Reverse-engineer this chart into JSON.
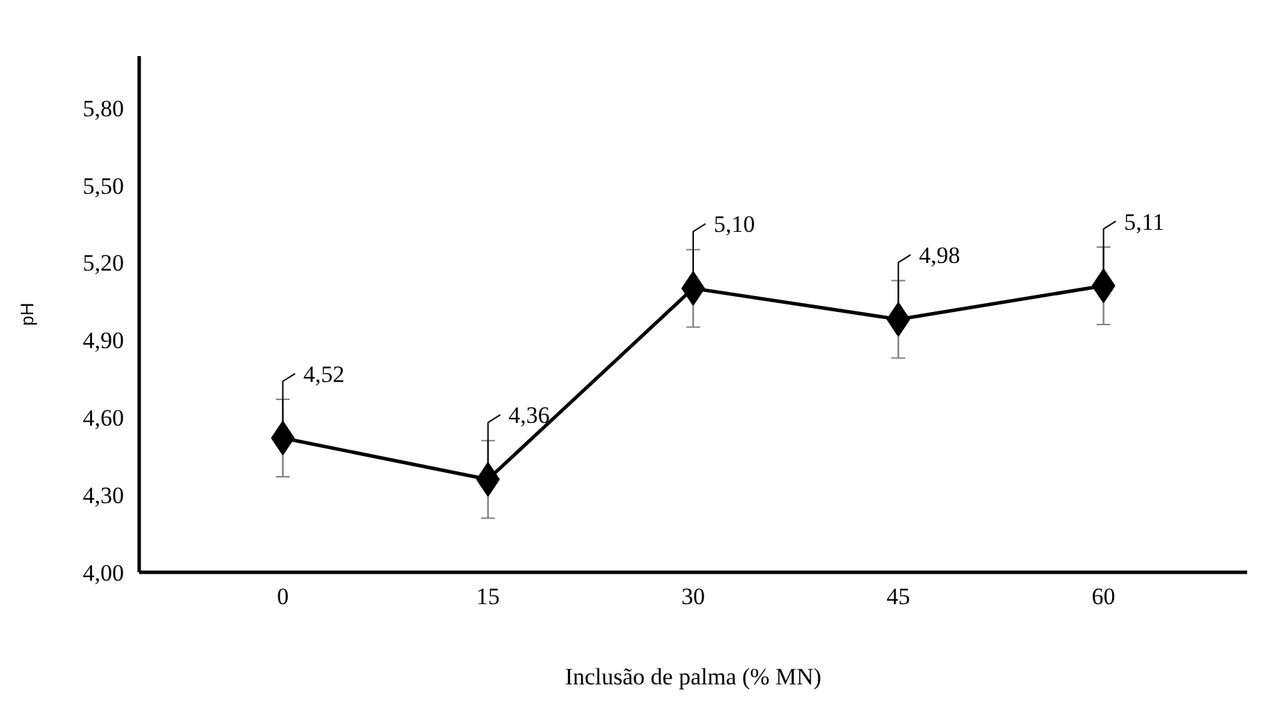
{
  "chart_data": {
    "type": "line",
    "xlabel": "Inclusão de palma (% MN)",
    "ylabel": "pH",
    "categories": [
      "0",
      "15",
      "30",
      "45",
      "60"
    ],
    "series": [
      {
        "color": "#000000",
        "values": [
          4.52,
          4.36,
          5.1,
          4.98,
          5.11
        ],
        "errors": [
          0.15,
          0.15,
          0.15,
          0.15,
          0.15
        ],
        "value_labels": [
          "4,52",
          "4,36",
          "5,10",
          "4,98",
          "5,11"
        ]
      }
    ],
    "ylim": [
      4.0,
      6.0
    ],
    "yticks": [
      {
        "value": 4.0,
        "label": "4,00"
      },
      {
        "value": 4.3,
        "label": "4,30"
      },
      {
        "value": 4.6,
        "label": "4,60"
      },
      {
        "value": 4.9,
        "label": "4,90"
      },
      {
        "value": 5.2,
        "label": "5,20"
      },
      {
        "value": 5.5,
        "label": "5,50"
      },
      {
        "value": 5.8,
        "label": "5,80"
      }
    ],
    "grid": false,
    "marker": "diamond",
    "line_style": "solid"
  }
}
